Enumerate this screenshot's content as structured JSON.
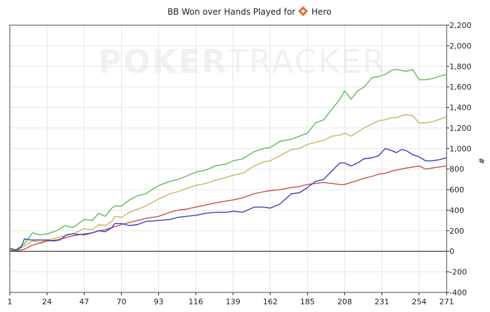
{
  "chart_data": {
    "type": "line",
    "title": "BB Won over Hands Played for",
    "player_name": "Hero",
    "watermark": {
      "bold": "POKER",
      "light": "TRACKER"
    },
    "xlabel": "",
    "ylabel": "#",
    "xlim": [
      1,
      271
    ],
    "ylim": [
      -400,
      2200
    ],
    "x_ticks": [
      1,
      24,
      47,
      70,
      93,
      116,
      139,
      162,
      185,
      208,
      231,
      254,
      271
    ],
    "y_ticks": [
      -400,
      -200,
      0,
      200,
      400,
      600,
      800,
      1000,
      1200,
      1400,
      1600,
      1800,
      2000,
      2200
    ],
    "y_tick_labels": [
      "-400",
      "-200",
      "0",
      "200",
      "400",
      "600",
      "800",
      "1,000",
      "1,200",
      "1,400",
      "1,600",
      "1,800",
      "2,000",
      "2,200"
    ],
    "grid": true,
    "series": [
      {
        "color": "#5cb85c",
        "points": [
          [
            1,
            10
          ],
          [
            5,
            20
          ],
          [
            10,
            70
          ],
          [
            15,
            180
          ],
          [
            20,
            160
          ],
          [
            24,
            170
          ],
          [
            30,
            200
          ],
          [
            35,
            250
          ],
          [
            40,
            230
          ],
          [
            47,
            310
          ],
          [
            52,
            300
          ],
          [
            56,
            370
          ],
          [
            60,
            340
          ],
          [
            64,
            420
          ],
          [
            66,
            440
          ],
          [
            70,
            440
          ],
          [
            75,
            500
          ],
          [
            80,
            540
          ],
          [
            85,
            560
          ],
          [
            93,
            640
          ],
          [
            100,
            680
          ],
          [
            105,
            700
          ],
          [
            110,
            730
          ],
          [
            116,
            770
          ],
          [
            122,
            790
          ],
          [
            128,
            830
          ],
          [
            135,
            850
          ],
          [
            139,
            880
          ],
          [
            145,
            900
          ],
          [
            152,
            970
          ],
          [
            158,
            1000
          ],
          [
            162,
            1010
          ],
          [
            168,
            1070
          ],
          [
            175,
            1090
          ],
          [
            180,
            1120
          ],
          [
            185,
            1150
          ],
          [
            190,
            1250
          ],
          [
            195,
            1280
          ],
          [
            200,
            1380
          ],
          [
            205,
            1480
          ],
          [
            208,
            1560
          ],
          [
            212,
            1480
          ],
          [
            216,
            1560
          ],
          [
            220,
            1600
          ],
          [
            225,
            1690
          ],
          [
            229,
            1700
          ],
          [
            233,
            1720
          ],
          [
            237,
            1760
          ],
          [
            240,
            1770
          ],
          [
            243,
            1760
          ],
          [
            246,
            1750
          ],
          [
            250,
            1770
          ],
          [
            254,
            1670
          ],
          [
            258,
            1670
          ],
          [
            262,
            1680
          ],
          [
            266,
            1700
          ],
          [
            271,
            1720
          ]
        ]
      },
      {
        "color": "#c8b460",
        "points": [
          [
            1,
            10
          ],
          [
            5,
            15
          ],
          [
            10,
            50
          ],
          [
            15,
            100
          ],
          [
            20,
            90
          ],
          [
            24,
            110
          ],
          [
            30,
            130
          ],
          [
            35,
            150
          ],
          [
            40,
            170
          ],
          [
            47,
            220
          ],
          [
            52,
            210
          ],
          [
            56,
            260
          ],
          [
            60,
            250
          ],
          [
            64,
            290
          ],
          [
            66,
            340
          ],
          [
            70,
            330
          ],
          [
            75,
            380
          ],
          [
            80,
            410
          ],
          [
            85,
            440
          ],
          [
            93,
            510
          ],
          [
            100,
            560
          ],
          [
            105,
            580
          ],
          [
            110,
            610
          ],
          [
            116,
            640
          ],
          [
            122,
            660
          ],
          [
            128,
            690
          ],
          [
            135,
            720
          ],
          [
            139,
            740
          ],
          [
            145,
            760
          ],
          [
            152,
            830
          ],
          [
            158,
            870
          ],
          [
            162,
            880
          ],
          [
            168,
            930
          ],
          [
            175,
            990
          ],
          [
            180,
            1000
          ],
          [
            185,
            1040
          ],
          [
            190,
            1060
          ],
          [
            195,
            1080
          ],
          [
            200,
            1120
          ],
          [
            205,
            1130
          ],
          [
            208,
            1150
          ],
          [
            212,
            1120
          ],
          [
            216,
            1160
          ],
          [
            220,
            1200
          ],
          [
            225,
            1240
          ],
          [
            229,
            1270
          ],
          [
            233,
            1280
          ],
          [
            237,
            1300
          ],
          [
            240,
            1300
          ],
          [
            243,
            1320
          ],
          [
            246,
            1330
          ],
          [
            250,
            1320
          ],
          [
            254,
            1250
          ],
          [
            258,
            1250
          ],
          [
            262,
            1260
          ],
          [
            266,
            1280
          ],
          [
            271,
            1310
          ]
        ]
      },
      {
        "color": "#c0504d",
        "points": [
          [
            1,
            10
          ],
          [
            5,
            5
          ],
          [
            10,
            20
          ],
          [
            15,
            60
          ],
          [
            20,
            80
          ],
          [
            24,
            100
          ],
          [
            30,
            110
          ],
          [
            35,
            130
          ],
          [
            40,
            150
          ],
          [
            47,
            170
          ],
          [
            52,
            180
          ],
          [
            56,
            200
          ],
          [
            60,
            210
          ],
          [
            64,
            230
          ],
          [
            66,
            240
          ],
          [
            70,
            260
          ],
          [
            75,
            280
          ],
          [
            80,
            300
          ],
          [
            85,
            320
          ],
          [
            93,
            340
          ],
          [
            100,
            380
          ],
          [
            105,
            400
          ],
          [
            110,
            410
          ],
          [
            116,
            430
          ],
          [
            122,
            450
          ],
          [
            128,
            470
          ],
          [
            135,
            490
          ],
          [
            139,
            500
          ],
          [
            145,
            520
          ],
          [
            152,
            560
          ],
          [
            158,
            580
          ],
          [
            162,
            590
          ],
          [
            168,
            600
          ],
          [
            175,
            620
          ],
          [
            180,
            630
          ],
          [
            185,
            650
          ],
          [
            190,
            660
          ],
          [
            195,
            670
          ],
          [
            200,
            660
          ],
          [
            205,
            650
          ],
          [
            208,
            650
          ],
          [
            212,
            670
          ],
          [
            216,
            690
          ],
          [
            220,
            710
          ],
          [
            225,
            730
          ],
          [
            229,
            750
          ],
          [
            233,
            760
          ],
          [
            237,
            780
          ],
          [
            240,
            790
          ],
          [
            243,
            800
          ],
          [
            246,
            810
          ],
          [
            250,
            820
          ],
          [
            254,
            830
          ],
          [
            258,
            800
          ],
          [
            262,
            810
          ],
          [
            266,
            820
          ],
          [
            271,
            830
          ]
        ]
      },
      {
        "color": "#3b3fc0",
        "points": [
          [
            1,
            30
          ],
          [
            5,
            10
          ],
          [
            8,
            40
          ],
          [
            10,
            120
          ],
          [
            14,
            110
          ],
          [
            20,
            110
          ],
          [
            24,
            110
          ],
          [
            28,
            100
          ],
          [
            32,
            110
          ],
          [
            36,
            160
          ],
          [
            40,
            170
          ],
          [
            47,
            160
          ],
          [
            52,
            180
          ],
          [
            56,
            200
          ],
          [
            60,
            190
          ],
          [
            64,
            230
          ],
          [
            66,
            270
          ],
          [
            70,
            270
          ],
          [
            75,
            250
          ],
          [
            80,
            260
          ],
          [
            85,
            290
          ],
          [
            93,
            300
          ],
          [
            100,
            310
          ],
          [
            105,
            330
          ],
          [
            110,
            340
          ],
          [
            116,
            350
          ],
          [
            122,
            370
          ],
          [
            128,
            380
          ],
          [
            135,
            380
          ],
          [
            139,
            390
          ],
          [
            145,
            380
          ],
          [
            152,
            430
          ],
          [
            158,
            430
          ],
          [
            162,
            420
          ],
          [
            168,
            460
          ],
          [
            175,
            560
          ],
          [
            180,
            570
          ],
          [
            185,
            620
          ],
          [
            190,
            680
          ],
          [
            195,
            700
          ],
          [
            200,
            780
          ],
          [
            205,
            860
          ],
          [
            208,
            860
          ],
          [
            212,
            830
          ],
          [
            216,
            860
          ],
          [
            220,
            900
          ],
          [
            225,
            910
          ],
          [
            229,
            930
          ],
          [
            233,
            1000
          ],
          [
            237,
            980
          ],
          [
            240,
            960
          ],
          [
            243,
            990
          ],
          [
            246,
            980
          ],
          [
            250,
            940
          ],
          [
            254,
            920
          ],
          [
            258,
            880
          ],
          [
            262,
            880
          ],
          [
            266,
            890
          ],
          [
            271,
            910
          ]
        ]
      }
    ]
  }
}
